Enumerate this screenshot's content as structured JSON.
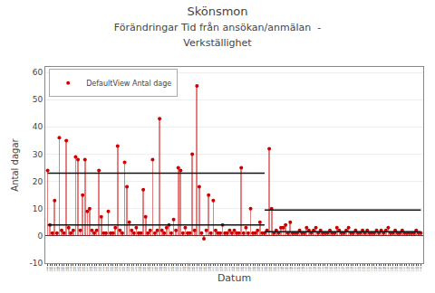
{
  "chart_data": {
    "type": "lollipop",
    "title": "Skönsmon",
    "subtitle": [
      "Förändringar Tid från ansökan/anmälan  -",
      "Verkställighet"
    ],
    "xlabel": "Datum",
    "ylabel": "Antal dagar",
    "categories": [
      "d000",
      "d001",
      "d002",
      "d003",
      "d004",
      "d005",
      "d006",
      "d007",
      "d008",
      "d009",
      "d010",
      "d011",
      "d012",
      "d013",
      "d014",
      "d015",
      "d016",
      "d017",
      "d018",
      "d019",
      "d020",
      "d021",
      "d022",
      "d023",
      "d024",
      "d025",
      "d026",
      "d027",
      "d028",
      "d029",
      "d030",
      "d031",
      "d032",
      "d033",
      "d034",
      "d035",
      "d036",
      "d037",
      "d038",
      "d039",
      "d040",
      "d041",
      "d042",
      "d043",
      "d044",
      "d045",
      "d046",
      "d047",
      "d048",
      "d049",
      "d050",
      "d051",
      "d052",
      "d053",
      "d054",
      "d055",
      "d056",
      "d057",
      "d058",
      "d059",
      "d060",
      "d061",
      "d062",
      "d063",
      "d064",
      "d065",
      "d066",
      "d067",
      "d068",
      "d069",
      "d070",
      "d071",
      "d072",
      "d073",
      "d074",
      "d075",
      "d076",
      "d077",
      "d078",
      "d079",
      "d080",
      "d081",
      "d082",
      "d083",
      "d084",
      "d085",
      "d086",
      "d087",
      "d088",
      "d089",
      "d090",
      "d091",
      "d092",
      "d093",
      "d094",
      "d095",
      "d096",
      "d097",
      "d098",
      "d099",
      "d100",
      "d101",
      "d102",
      "d103",
      "d104",
      "d105",
      "d106",
      "d107",
      "d108",
      "d109",
      "d110",
      "d111",
      "d112",
      "d113",
      "d114",
      "d115",
      "d116",
      "d117",
      "d118",
      "d119",
      "d120",
      "d121",
      "d122",
      "d123",
      "d124",
      "d125",
      "d126",
      "d127",
      "d128",
      "d129",
      "d130",
      "d131",
      "d132",
      "d133",
      "d134",
      "d135",
      "d136",
      "d137",
      "d138",
      "d139",
      "d140",
      "d141",
      "d142",
      "d143",
      "d144",
      "d145",
      "d146",
      "d147",
      "d148",
      "d149",
      "d150",
      "d151",
      "d152",
      "d153",
      "d154",
      "d155",
      "d156",
      "d157",
      "d158",
      "d159",
      "d160"
    ],
    "series": [
      {
        "name": "DefaultView Antal dage",
        "color": "#cc0000",
        "values": [
          24,
          4,
          1,
          13,
          1,
          36,
          2,
          1,
          35,
          3,
          1,
          2,
          29,
          28,
          2,
          15,
          28,
          9,
          10,
          2,
          1,
          2,
          24,
          7,
          1,
          1,
          9,
          1,
          1,
          3,
          33,
          2,
          1,
          27,
          18,
          5,
          2,
          1,
          3,
          1,
          1,
          17,
          7,
          1,
          2,
          28,
          1,
          2,
          43,
          2,
          1,
          3,
          4,
          1,
          6,
          2,
          25,
          24,
          1,
          3,
          1,
          1,
          30,
          2,
          55,
          18,
          1,
          -1,
          2,
          15,
          1,
          13,
          2,
          1,
          1,
          4,
          1,
          1,
          2,
          1,
          2,
          1,
          1,
          25,
          1,
          3,
          1,
          10,
          1,
          1,
          2,
          5,
          1,
          1,
          2,
          32,
          10,
          1,
          2,
          1,
          3,
          3,
          4,
          1,
          5,
          1,
          1,
          1,
          2,
          1,
          1,
          3,
          2,
          1,
          2,
          3,
          1,
          2,
          1,
          1,
          1,
          2,
          1,
          1,
          3,
          2,
          1,
          1,
          2,
          3,
          1,
          1,
          2,
          1,
          1,
          2,
          1,
          2,
          1,
          1,
          1,
          2,
          1,
          2,
          1,
          2,
          3,
          1,
          1,
          2,
          1,
          1,
          2,
          1,
          1,
          1,
          1,
          1,
          2,
          1,
          1
        ]
      }
    ],
    "reference_lines": [
      {
        "from": "d000",
        "to": "d093",
        "value": 23.0,
        "color": "#111111"
      },
      {
        "from": "d093",
        "to": "d160",
        "value": 9.5,
        "color": "#111111"
      },
      {
        "from": "d000",
        "to": "d093",
        "value": 4.0,
        "color": "#111111"
      },
      {
        "from": "d093",
        "to": "d160",
        "value": 1.5,
        "color": "#111111"
      }
    ],
    "ylim": [
      -10,
      62
    ],
    "yticks": [
      -10,
      0,
      10,
      20,
      30,
      40,
      50,
      60
    ],
    "grid": true,
    "legend": "upper left"
  }
}
